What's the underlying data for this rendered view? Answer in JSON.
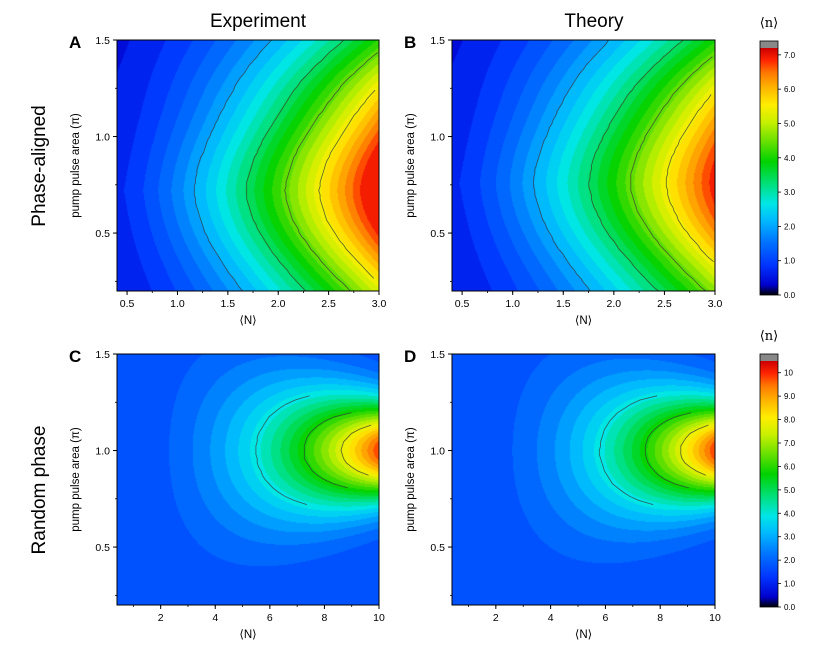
{
  "figure": {
    "column_titles": [
      "Experiment",
      "Theory"
    ],
    "row_titles": [
      "Phase-aligned",
      "Random phase"
    ]
  },
  "colors": {
    "colormap": [
      "#000000",
      "#0000cc",
      "#0033ff",
      "#0077ff",
      "#00b8ff",
      "#00e6e6",
      "#00e07a",
      "#00d200",
      "#66e000",
      "#c8f000",
      "#ffee00",
      "#ffb400",
      "#ff7800",
      "#ff2400",
      "#cc0000"
    ],
    "overflow": "#888888",
    "contour": "#3a3a3a"
  },
  "chart_data": [
    {
      "panel": "A",
      "type": "heatmap",
      "title": "Experiment",
      "xlabel": "⟨N⟩",
      "ylabel": "pump pulse area (π)",
      "xlim": [
        0.4,
        3.0
      ],
      "ylim": [
        0.2,
        1.5
      ],
      "xticks": [
        0.5,
        1.0,
        1.5,
        2.0,
        2.5,
        3.0
      ],
      "xtick_labels": [
        "0.5",
        "1.0",
        "1.5",
        "2.0",
        "2.5",
        "3.0"
      ],
      "yticks": [
        0.5,
        1.0,
        1.5
      ],
      "ytick_labels": [
        "0.5",
        "1.0",
        "1.5"
      ],
      "zlim": [
        0,
        7.2
      ],
      "peak": {
        "x": 3.0,
        "y": 0.72,
        "value": 7.0
      },
      "colorbar_label": "⟨n⟩"
    },
    {
      "panel": "B",
      "type": "heatmap",
      "title": "Theory",
      "xlabel": "⟨N⟩",
      "ylabel": "pump pulse area (π)",
      "xlim": [
        0.4,
        3.0
      ],
      "ylim": [
        0.2,
        1.5
      ],
      "xticks": [
        0.5,
        1.0,
        1.5,
        2.0,
        2.5,
        3.0
      ],
      "xtick_labels": [
        "0.5",
        "1.0",
        "1.5",
        "2.0",
        "2.5",
        "3.0"
      ],
      "yticks": [
        0.5,
        1.0,
        1.5
      ],
      "ytick_labels": [
        "0.5",
        "1.0",
        "1.5"
      ],
      "zlim": [
        0,
        7.2
      ],
      "peak": {
        "x": 3.0,
        "y": 0.75,
        "value": 6.5
      },
      "colorbar_label": "⟨n⟩"
    },
    {
      "panel": "C",
      "type": "heatmap",
      "title": "Random phase / Experiment",
      "xlabel": "⟨N⟩",
      "ylabel": "pump pulse area (π)",
      "xlim": [
        0.4,
        10.0
      ],
      "ylim": [
        0.2,
        1.5
      ],
      "xticks": [
        2,
        4,
        6,
        8,
        10
      ],
      "xtick_labels": [
        "2",
        "4",
        "6",
        "8",
        "10"
      ],
      "yticks": [
        0.5,
        1.0,
        1.5
      ],
      "ytick_labels": [
        "0.5",
        "1.0",
        "1.5"
      ],
      "zlim": [
        0,
        10.5
      ],
      "peak": {
        "x": 10.0,
        "y": 1.0,
        "value": 9.5
      },
      "colorbar_label": "⟨n⟩"
    },
    {
      "panel": "D",
      "type": "heatmap",
      "title": "Random phase / Theory",
      "xlabel": "⟨N⟩",
      "ylabel": "pump pulse area (π)",
      "xlim": [
        0.4,
        10.0
      ],
      "ylim": [
        0.2,
        1.5
      ],
      "xticks": [
        2,
        4,
        6,
        8,
        10
      ],
      "xtick_labels": [
        "2",
        "4",
        "6",
        "8",
        "10"
      ],
      "yticks": [
        0.5,
        1.0,
        1.5
      ],
      "ytick_labels": [
        "0.5",
        "1.0",
        "1.5"
      ],
      "zlim": [
        0,
        10.5
      ],
      "peak": {
        "x": 10.0,
        "y": 1.0,
        "value": 9.8
      },
      "colorbar_label": "⟨n⟩"
    }
  ],
  "colorbars": [
    {
      "title": "⟨n⟩",
      "min": 0,
      "max": 7.2,
      "tick_values": [
        0,
        1,
        2,
        3,
        4,
        5,
        6,
        7
      ],
      "tick_labels": [
        "0.0",
        "1.0",
        "2.0",
        "3.0",
        "4.0",
        "5.0",
        "6.0",
        "7.0"
      ]
    },
    {
      "title": "⟨n⟩",
      "min": 0,
      "max": 10.5,
      "tick_values": [
        0,
        1,
        2,
        3,
        4,
        5,
        6,
        7,
        8,
        9,
        10
      ],
      "tick_labels": [
        "0.0",
        "1.0",
        "2.0",
        "3.0",
        "4.0",
        "5.0",
        "6.0",
        "7.0",
        "8.0",
        "9.0",
        "10"
      ]
    }
  ]
}
